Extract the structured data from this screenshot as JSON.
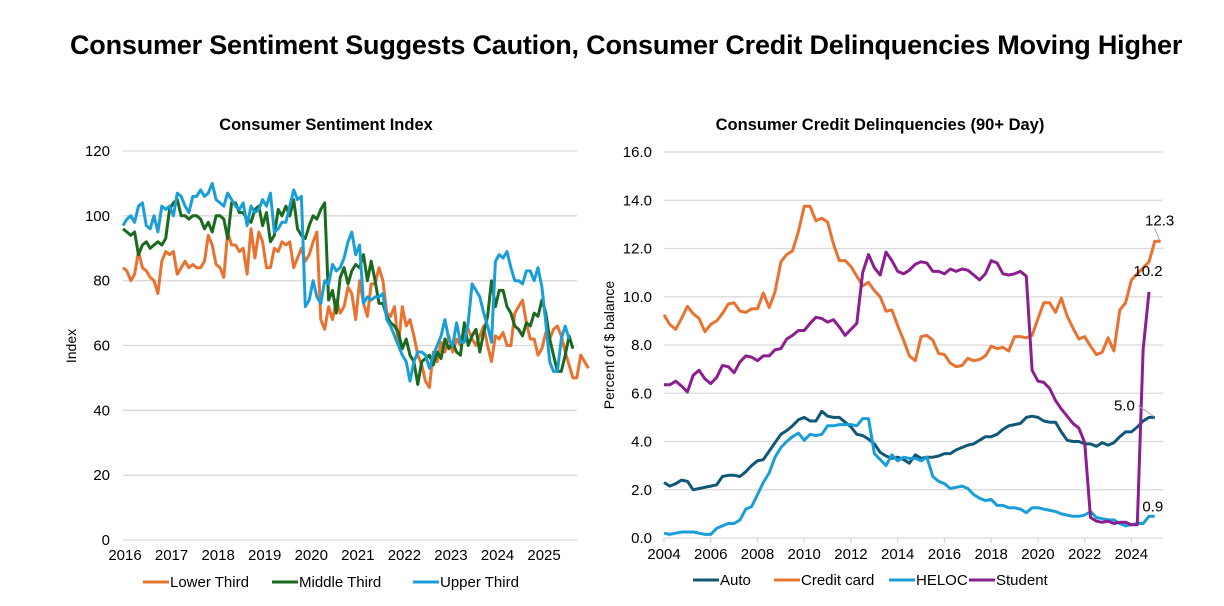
{
  "page": {
    "title": "Consumer Sentiment Suggests Caution, Consumer Credit Delinquencies Moving Higher"
  },
  "chart_data": [
    {
      "type": "line",
      "title": "Consumer Sentiment Index",
      "xlabel": "",
      "ylabel": "Index",
      "ylim": [
        0,
        120
      ],
      "yticks": [
        "0",
        "20",
        "40",
        "60",
        "80",
        "100",
        "120"
      ],
      "xlim": [
        2016.0,
        2025.75
      ],
      "xticks": [
        "2016",
        "2017",
        "2018",
        "2019",
        "2020",
        "2021",
        "2022",
        "2023",
        "2024",
        "2025"
      ],
      "grid": true,
      "legend": "bottom",
      "x_step_years": 0.0833,
      "series": [
        {
          "name": "Lower Third",
          "color": "#E87330",
          "values": [
            84,
            83,
            80,
            82,
            89,
            84,
            83,
            81,
            80,
            76,
            86,
            89,
            88,
            89,
            82,
            84,
            86,
            84,
            85,
            84,
            84,
            86,
            94,
            91,
            85,
            84,
            81,
            95,
            91,
            91,
            89,
            90,
            82,
            96,
            87,
            95,
            92,
            84,
            84,
            90,
            89,
            92,
            91,
            92,
            84,
            87,
            90,
            86,
            88,
            92,
            95,
            68,
            65,
            72,
            68,
            74,
            70,
            72,
            78,
            76,
            68,
            80,
            73,
            69,
            79,
            79,
            84,
            80,
            70,
            69,
            72,
            60,
            72,
            66,
            68,
            63,
            57,
            54,
            49,
            47,
            58,
            55,
            61,
            58,
            63,
            58,
            62,
            60,
            66,
            65,
            62,
            60,
            63,
            66,
            60,
            55,
            63,
            62,
            64,
            60,
            60,
            70,
            72,
            74,
            67,
            62,
            62,
            57,
            59,
            64,
            62,
            65,
            66,
            63,
            58,
            54,
            50,
            50,
            57,
            55,
            53
          ]
        },
        {
          "name": "Middle Third",
          "color": "#1B6A1F",
          "values": [
            96,
            95,
            94,
            95,
            88,
            91,
            92,
            90,
            91,
            92,
            91,
            93,
            102,
            104,
            105,
            100,
            100,
            99,
            100,
            100,
            99,
            96,
            98,
            95,
            100,
            100,
            99,
            93,
            104,
            104,
            101,
            101,
            99,
            98,
            102,
            103,
            97,
            101,
            92,
            94,
            102,
            100,
            103,
            100,
            105,
            96,
            94,
            93,
            97,
            100,
            99,
            102,
            104,
            74,
            77,
            70,
            81,
            84,
            79,
            83,
            85,
            84,
            88,
            80,
            86,
            80,
            73,
            73,
            69,
            67,
            66,
            64,
            59,
            62,
            57,
            55,
            48,
            55,
            56,
            57,
            54,
            58,
            56,
            62,
            59,
            61,
            58,
            57,
            67,
            60,
            63,
            65,
            58,
            64,
            69,
            80,
            72,
            77,
            77,
            72,
            70,
            66,
            65,
            63,
            67,
            66,
            70,
            69,
            74,
            70,
            62,
            57,
            52,
            52,
            57,
            63,
            59
          ]
        },
        {
          "name": "Upper Third",
          "color": "#1A9ED8",
          "values": [
            97,
            99,
            100,
            98,
            103,
            104,
            97,
            96,
            100,
            95,
            103,
            102,
            103,
            100,
            107,
            106,
            103,
            101,
            106,
            106,
            108,
            106,
            107,
            110,
            105,
            104,
            103,
            107,
            105,
            103,
            102,
            104,
            97,
            103,
            101,
            102,
            105,
            103,
            107,
            95,
            96,
            98,
            98,
            103,
            108,
            105,
            106,
            72,
            74,
            80,
            75,
            73,
            80,
            79,
            85,
            83,
            84,
            87,
            92,
            95,
            88,
            91,
            73,
            75,
            74,
            75,
            75,
            76,
            68,
            66,
            63,
            60,
            57,
            55,
            49,
            55,
            58,
            58,
            57,
            53,
            57,
            60,
            63,
            68,
            62,
            60,
            67,
            61,
            61,
            67,
            79,
            77,
            75,
            70,
            66,
            61,
            86,
            88,
            87,
            89,
            84,
            80,
            80,
            79,
            83,
            83,
            80,
            84,
            78,
            67,
            55,
            52,
            52,
            62,
            66,
            62
          ]
        }
      ]
    },
    {
      "type": "line",
      "title": "Consumer Credit Delinquencies (90+ Day)",
      "xlabel": "",
      "ylabel": "Percent of $ balance",
      "ylim": [
        0,
        16
      ],
      "yticks": [
        "0.0",
        "2.0",
        "4.0",
        "6.0",
        "8.0",
        "10.0",
        "12.0",
        "14.0",
        "16.0"
      ],
      "xlim": [
        2004.0,
        2025.35
      ],
      "xticks": [
        "2004",
        "2006",
        "2008",
        "2010",
        "2012",
        "2014",
        "2016",
        "2018",
        "2020",
        "2022",
        "2024"
      ],
      "grid": true,
      "legend": "bottom",
      "x_step_years": 0.25,
      "annotations": [
        {
          "series": "Credit card",
          "text": "12.3"
        },
        {
          "series": "Student",
          "text": "10.2"
        },
        {
          "series": "Auto",
          "text": "5.0"
        },
        {
          "series": "HELOC",
          "text": "0.9"
        }
      ],
      "series": [
        {
          "name": "Auto",
          "color": "#0F5878",
          "values": [
            2.3,
            2.15,
            2.25,
            2.4,
            2.35,
            2.0,
            2.05,
            2.1,
            2.15,
            2.2,
            2.55,
            2.6,
            2.6,
            2.55,
            2.75,
            3.0,
            3.2,
            3.25,
            3.6,
            3.95,
            4.3,
            4.45,
            4.65,
            4.9,
            5.0,
            4.85,
            4.85,
            5.25,
            5.05,
            5.0,
            5.0,
            4.8,
            4.6,
            4.3,
            4.25,
            4.1,
            3.9,
            3.55,
            3.4,
            3.3,
            3.35,
            3.25,
            3.1,
            3.45,
            3.3,
            3.35,
            3.35,
            3.4,
            3.5,
            3.5,
            3.65,
            3.75,
            3.85,
            3.9,
            4.05,
            4.2,
            4.2,
            4.3,
            4.5,
            4.65,
            4.7,
            4.75,
            5.0,
            5.05,
            5.0,
            4.85,
            4.8,
            4.8,
            4.4,
            4.05,
            4.0,
            4.0,
            3.9,
            3.9,
            3.8,
            3.95,
            3.85,
            3.95,
            4.2,
            4.4,
            4.4,
            4.6,
            4.85,
            5.0,
            5.0
          ]
        },
        {
          "name": "Credit card",
          "color": "#E87330",
          "values": [
            9.25,
            8.85,
            8.65,
            9.1,
            9.6,
            9.3,
            9.1,
            8.55,
            8.85,
            9.0,
            9.3,
            9.7,
            9.75,
            9.4,
            9.35,
            9.5,
            9.5,
            10.15,
            9.55,
            10.2,
            11.45,
            11.75,
            11.9,
            12.7,
            13.75,
            13.75,
            13.15,
            13.25,
            13.1,
            12.2,
            11.5,
            11.5,
            11.25,
            10.85,
            10.45,
            10.6,
            10.25,
            10.0,
            9.4,
            9.45,
            8.8,
            8.2,
            7.55,
            7.35,
            8.35,
            8.4,
            8.2,
            7.65,
            7.6,
            7.25,
            7.1,
            7.15,
            7.45,
            7.35,
            7.4,
            7.55,
            7.95,
            7.85,
            7.9,
            7.75,
            8.35,
            8.35,
            8.3,
            8.4,
            9.1,
            9.75,
            9.75,
            9.35,
            9.95,
            9.2,
            8.7,
            8.25,
            8.35,
            7.95,
            7.6,
            7.7,
            8.3,
            7.75,
            9.45,
            9.75,
            10.7,
            10.95,
            11.2,
            11.45,
            12.3,
            12.3
          ]
        },
        {
          "name": "HELOC",
          "color": "#1A9ED8",
          "values": [
            0.2,
            0.15,
            0.2,
            0.25,
            0.25,
            0.25,
            0.2,
            0.15,
            0.15,
            0.4,
            0.5,
            0.6,
            0.6,
            0.75,
            1.2,
            1.3,
            1.8,
            2.3,
            2.7,
            3.35,
            3.75,
            4.0,
            4.2,
            4.35,
            4.05,
            4.3,
            4.25,
            4.3,
            4.65,
            4.65,
            4.7,
            4.7,
            4.7,
            4.65,
            4.95,
            4.95,
            3.5,
            3.25,
            3.0,
            3.45,
            3.2,
            3.35,
            3.3,
            3.3,
            3.2,
            3.35,
            2.55,
            2.35,
            2.25,
            2.05,
            2.1,
            2.15,
            2.05,
            1.8,
            1.65,
            1.55,
            1.6,
            1.35,
            1.35,
            1.25,
            1.25,
            1.2,
            1.05,
            1.25,
            1.25,
            1.2,
            1.15,
            1.1,
            1.0,
            0.95,
            0.9,
            0.9,
            0.95,
            1.1,
            0.85,
            0.8,
            0.75,
            0.75,
            0.6,
            0.5,
            0.55,
            0.6,
            0.6,
            0.9,
            0.9
          ]
        },
        {
          "name": "Student",
          "color": "#8B1F8F",
          "values": [
            6.35,
            6.35,
            6.5,
            6.3,
            6.05,
            6.75,
            6.95,
            6.6,
            6.4,
            6.65,
            7.15,
            7.1,
            6.85,
            7.3,
            7.55,
            7.5,
            7.35,
            7.55,
            7.55,
            7.8,
            7.85,
            8.25,
            8.4,
            8.6,
            8.6,
            8.9,
            9.15,
            9.1,
            8.95,
            9.05,
            8.75,
            8.4,
            8.65,
            8.9,
            11.0,
            11.75,
            11.2,
            10.9,
            11.85,
            11.5,
            11.05,
            10.95,
            11.1,
            11.35,
            11.45,
            11.4,
            11.05,
            11.05,
            10.95,
            11.15,
            11.05,
            11.15,
            11.1,
            10.9,
            10.7,
            10.95,
            11.5,
            11.4,
            10.95,
            10.9,
            10.95,
            11.05,
            10.85,
            6.95,
            6.5,
            6.45,
            6.2,
            5.7,
            5.35,
            5.05,
            4.75,
            4.55,
            3.95,
            0.85,
            0.7,
            0.65,
            0.7,
            0.6,
            0.65,
            0.65,
            0.55,
            0.55,
            7.8,
            10.2
          ]
        }
      ]
    }
  ]
}
